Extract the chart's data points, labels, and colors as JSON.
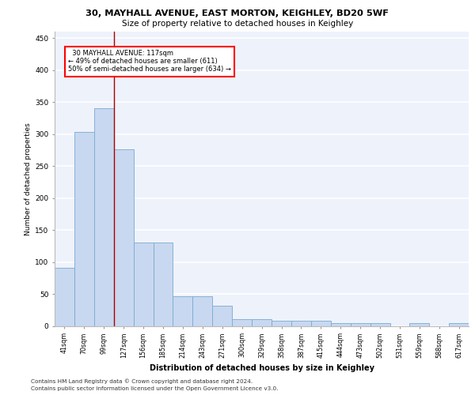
{
  "title1": "30, MAYHALL AVENUE, EAST MORTON, KEIGHLEY, BD20 5WF",
  "title2": "Size of property relative to detached houses in Keighley",
  "xlabel": "Distribution of detached houses by size in Keighley",
  "ylabel": "Number of detached properties",
  "categories": [
    "41sqm",
    "70sqm",
    "99sqm",
    "127sqm",
    "156sqm",
    "185sqm",
    "214sqm",
    "243sqm",
    "271sqm",
    "300sqm",
    "329sqm",
    "358sqm",
    "387sqm",
    "415sqm",
    "444sqm",
    "473sqm",
    "502sqm",
    "531sqm",
    "559sqm",
    "588sqm",
    "617sqm"
  ],
  "values": [
    91,
    303,
    340,
    276,
    130,
    130,
    46,
    46,
    31,
    10,
    10,
    8,
    8,
    8,
    4,
    4,
    4,
    0,
    4,
    0,
    4
  ],
  "bar_color": "#c8d8f0",
  "bar_edge_color": "#7aaad0",
  "bg_color": "#eef2fb",
  "grid_color": "#ffffff",
  "annotation_text": "  30 MAYHALL AVENUE: 117sqm  \n← 49% of detached houses are smaller (611)\n50% of semi-detached houses are larger (634) →",
  "vline_x": 2.5,
  "vline_color": "#aa0000",
  "ylim": [
    0,
    460
  ],
  "yticks": [
    0,
    50,
    100,
    150,
    200,
    250,
    300,
    350,
    400,
    450
  ],
  "footer1": "Contains HM Land Registry data © Crown copyright and database right 2024.",
  "footer2": "Contains public sector information licensed under the Open Government Licence v3.0."
}
